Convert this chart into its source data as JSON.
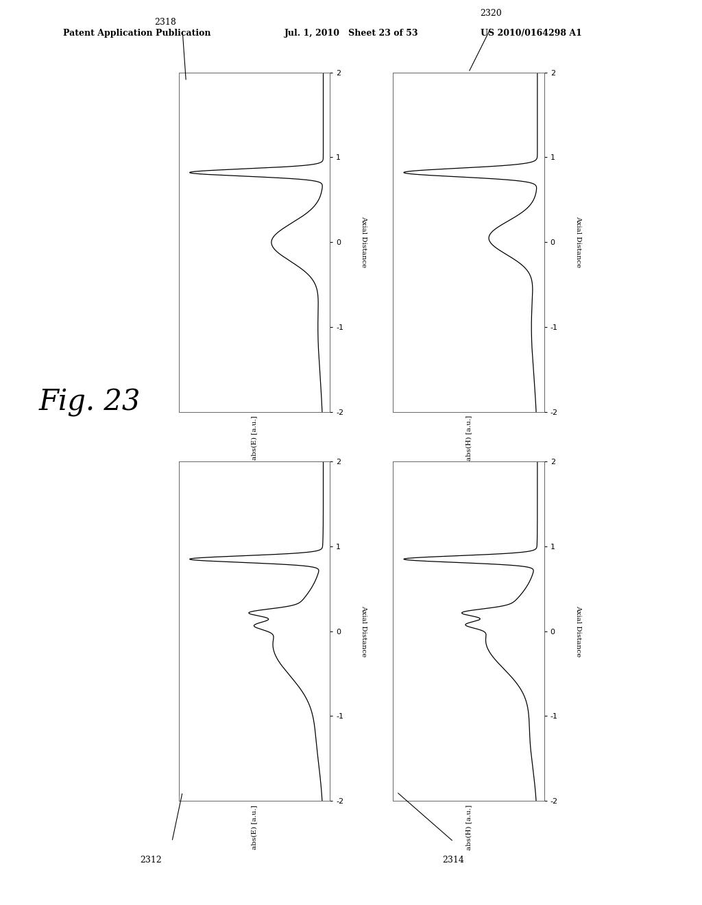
{
  "header_left": "Patent Application Publication",
  "header_mid": "Jul. 1, 2010   Sheet 23 of 53",
  "header_right": "US 2010/0164298 A1",
  "fig_label": "Fig. 23",
  "background": "#ffffff",
  "line_color": "#000000",
  "plot_facecolor": "#ffffff",
  "border_color": "#888888",
  "plots": [
    {
      "key": "TL",
      "id": "2318",
      "xlabel": "abs(E) [a.u.]",
      "ylabel": "Axial Distance",
      "id_pos": "top_left"
    },
    {
      "key": "TR",
      "id": "2320",
      "xlabel": "abs(H) [a.u.]",
      "ylabel": "Axial Distance",
      "id_pos": "top_right"
    },
    {
      "key": "BL",
      "id": "2312",
      "xlabel": "abs(E) [a.u.]",
      "ylabel": "Axial Distance",
      "id_pos": "bot_left"
    },
    {
      "key": "BR",
      "id": "2314",
      "xlabel": "abs(H) [a.u.]",
      "ylabel": "Axial Distance",
      "id_pos": "bot_right"
    }
  ],
  "yticks": [
    -2,
    -1,
    0,
    1,
    2
  ]
}
